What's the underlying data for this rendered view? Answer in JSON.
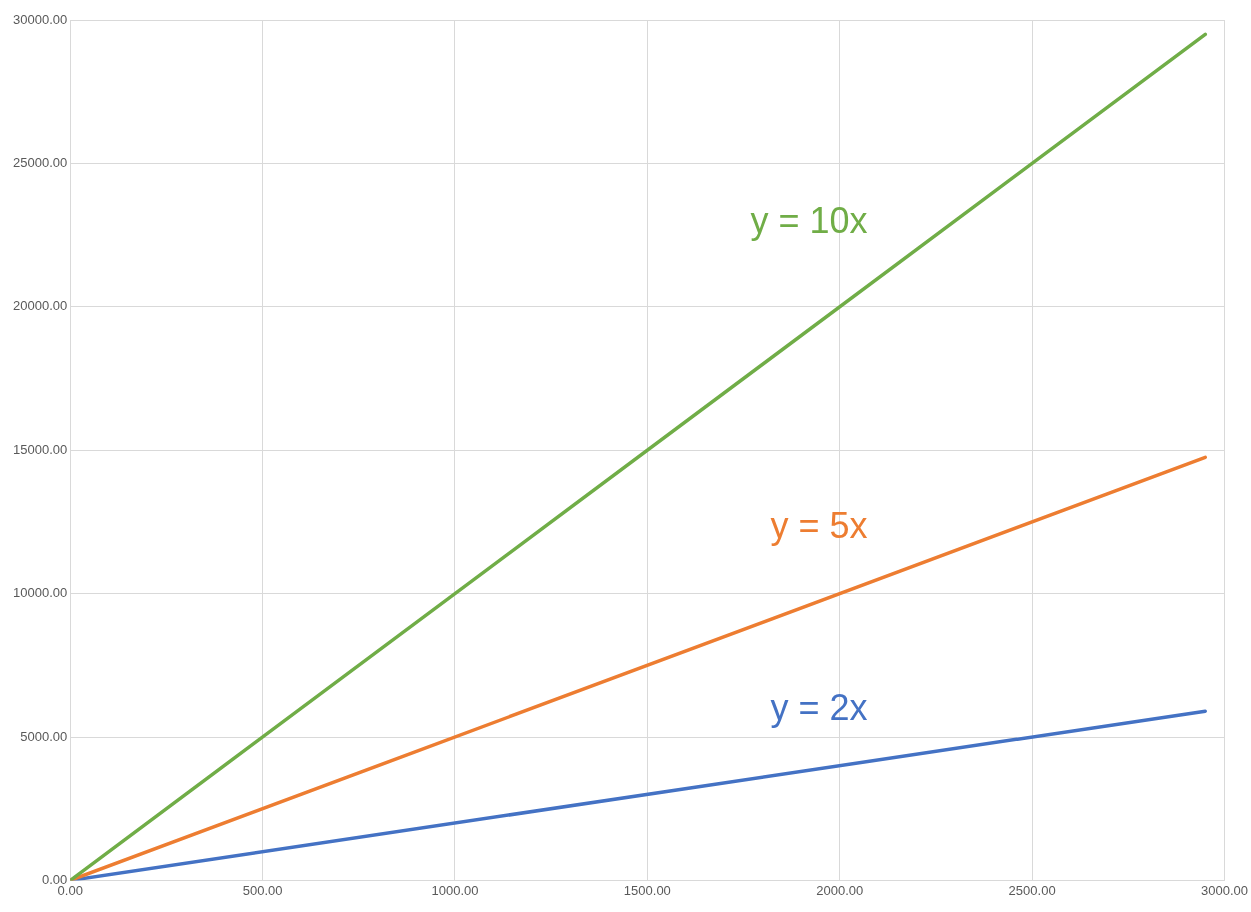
{
  "chart_data": {
    "type": "line",
    "x": [
      0,
      2950
    ],
    "series": [
      {
        "name": "y = 10x",
        "color": "#70ad47",
        "values": [
          0,
          29500
        ]
      },
      {
        "name": "y = 5x",
        "color": "#ed7d31",
        "values": [
          0,
          14750
        ]
      },
      {
        "name": "y = 2x",
        "color": "#4472c4",
        "values": [
          0,
          5900
        ]
      }
    ],
    "xlim": [
      0,
      3000
    ],
    "ylim": [
      0,
      30000
    ],
    "xticks": [
      {
        "value": 0,
        "label": "0.00"
      },
      {
        "value": 500,
        "label": "500.00"
      },
      {
        "value": 1000,
        "label": "1000.00"
      },
      {
        "value": 1500,
        "label": "1500.00"
      },
      {
        "value": 2000,
        "label": "2000.00"
      },
      {
        "value": 2500,
        "label": "2500.00"
      },
      {
        "value": 3000,
        "label": "3000.00"
      }
    ],
    "yticks": [
      {
        "value": 0,
        "label": "0.00"
      },
      {
        "value": 5000,
        "label": "5000.00"
      },
      {
        "value": 10000,
        "label": "10000.00"
      },
      {
        "value": 15000,
        "label": "15000.00"
      },
      {
        "value": 20000,
        "label": "20000.00"
      },
      {
        "value": 25000,
        "label": "25000.00"
      },
      {
        "value": 30000,
        "label": "30000.00"
      }
    ],
    "grid": true,
    "legend": false,
    "marker": "none",
    "line_style": "solid"
  }
}
